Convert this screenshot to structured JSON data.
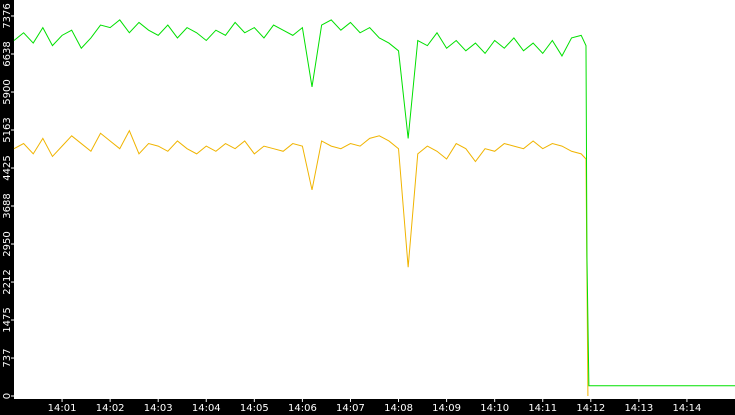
{
  "chart_data": {
    "type": "line",
    "xlim": [
      0,
      15
    ],
    "xticks": [
      {
        "value": 1,
        "label": "14:01"
      },
      {
        "value": 2,
        "label": "14:02"
      },
      {
        "value": 3,
        "label": "14:03"
      },
      {
        "value": 4,
        "label": "14:04"
      },
      {
        "value": 5,
        "label": "14:05"
      },
      {
        "value": 6,
        "label": "14:06"
      },
      {
        "value": 7,
        "label": "14:07"
      },
      {
        "value": 8,
        "label": "14:08"
      },
      {
        "value": 9,
        "label": "14:09"
      },
      {
        "value": 10,
        "label": "14:10"
      },
      {
        "value": 11,
        "label": "14:11"
      },
      {
        "value": 12,
        "label": "14:12"
      },
      {
        "value": 13,
        "label": "14:13"
      },
      {
        "value": 14,
        "label": "14:14"
      }
    ],
    "ylim": [
      -58,
      7686
    ],
    "yticks": [
      0,
      737,
      1475,
      2212,
      2950,
      3688,
      4425,
      5163,
      5900,
      6638,
      7376
    ],
    "series": [
      {
        "color": "#00e000",
        "x": [
          0,
          0.2,
          0.4,
          0.6,
          0.8,
          1,
          1.2,
          1.4,
          1.6,
          1.8,
          2,
          2.2,
          2.4,
          2.6,
          2.8,
          3,
          3.2,
          3.4,
          3.6,
          3.8,
          4,
          4.2,
          4.4,
          4.6,
          4.8,
          5,
          5.2,
          5.4,
          5.6,
          5.8,
          6,
          6.2,
          6.4,
          6.6,
          6.8,
          7,
          7.2,
          7.4,
          7.6,
          7.8,
          8,
          8.2,
          8.4,
          8.6,
          8.8,
          9,
          9.2,
          9.4,
          9.6,
          9.8,
          10,
          10.2,
          10.4,
          10.6,
          10.8,
          11,
          11.2,
          11.4,
          11.6,
          11.8,
          11.9,
          11.92,
          11.96,
          15
        ],
        "values": [
          6900,
          7050,
          6850,
          7150,
          6800,
          7000,
          7100,
          6750,
          6950,
          7200,
          7150,
          7300,
          7050,
          7250,
          7100,
          7000,
          7200,
          6950,
          7150,
          7050,
          6900,
          7100,
          7000,
          7250,
          7050,
          7150,
          6950,
          7200,
          7100,
          7000,
          7150,
          6000,
          7200,
          7300,
          7100,
          7250,
          7050,
          7150,
          6950,
          6850,
          6700,
          5000,
          6900,
          6800,
          7050,
          6750,
          6900,
          6700,
          6850,
          6650,
          6900,
          6750,
          6950,
          6700,
          6850,
          6650,
          6900,
          6600,
          6950,
          7000,
          6800,
          2700,
          200,
          200
        ]
      },
      {
        "color": "#f0b400",
        "x": [
          0,
          0.2,
          0.4,
          0.6,
          0.8,
          1,
          1.2,
          1.4,
          1.6,
          1.8,
          2,
          2.2,
          2.4,
          2.6,
          2.8,
          3,
          3.2,
          3.4,
          3.6,
          3.8,
          4,
          4.2,
          4.4,
          4.6,
          4.8,
          5,
          5.2,
          5.4,
          5.6,
          5.8,
          6,
          6.2,
          6.4,
          6.6,
          6.8,
          7,
          7.2,
          7.4,
          7.6,
          7.8,
          8,
          8.2,
          8.4,
          8.6,
          8.8,
          9,
          9.2,
          9.4,
          9.6,
          9.8,
          10,
          10.2,
          10.4,
          10.6,
          10.8,
          11,
          11.2,
          11.4,
          11.6,
          11.8,
          11.9,
          11.94
        ],
        "values": [
          4800,
          4900,
          4700,
          5000,
          4650,
          4850,
          5050,
          4900,
          4750,
          5100,
          4950,
          4800,
          5150,
          4700,
          4900,
          4850,
          4750,
          4950,
          4800,
          4700,
          4850,
          4750,
          4900,
          4800,
          4950,
          4700,
          4850,
          4800,
          4750,
          4900,
          4850,
          4000,
          4950,
          4850,
          4800,
          4900,
          4850,
          5000,
          5050,
          4950,
          4800,
          2500,
          4700,
          4850,
          4750,
          4600,
          4900,
          4800,
          4550,
          4800,
          4750,
          4900,
          4850,
          4800,
          4950,
          4800,
          4900,
          4850,
          4750,
          4700,
          4600,
          0
        ]
      }
    ]
  }
}
